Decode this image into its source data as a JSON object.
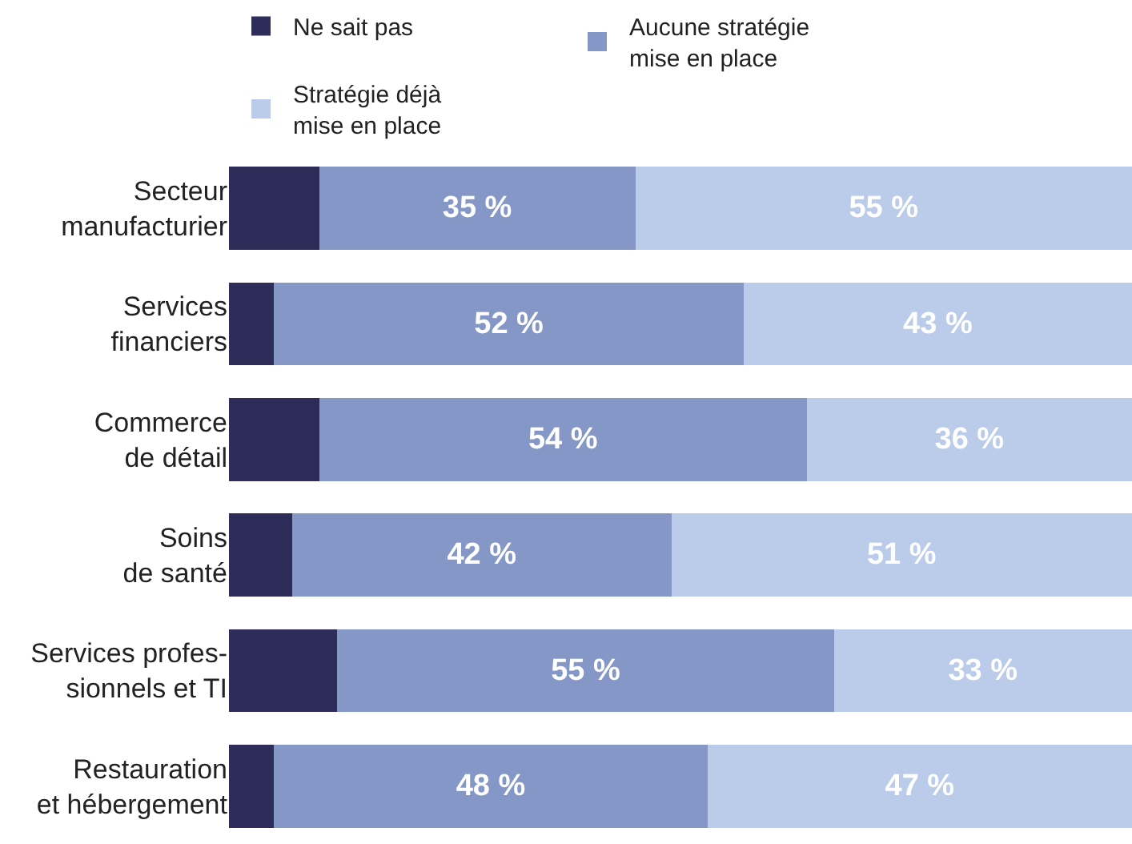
{
  "chart_data": {
    "type": "bar",
    "orientation": "horizontal",
    "stacked": true,
    "legend": "top",
    "xlim": [
      0,
      100
    ],
    "categories": [
      "Secteur\nmanufacturier",
      "Services\nfinanciers",
      "Commerce\nde détail",
      "Soins\nde santé",
      "Services profes-\nsionnels et TI",
      "Restauration\net hébergement"
    ],
    "series": [
      {
        "name": "Ne sait pas",
        "color": "#2e2d5a",
        "values": [
          10,
          5,
          10,
          7,
          12,
          5
        ],
        "value_labels": [
          null,
          null,
          null,
          null,
          null,
          null
        ]
      },
      {
        "name": "Aucune stratégie\nmise en place",
        "color": "#8497c6",
        "values": [
          35,
          52,
          54,
          42,
          55,
          48
        ],
        "value_labels": [
          "35 %",
          "52 %",
          "54 %",
          "42 %",
          "55 %",
          "48 %"
        ]
      },
      {
        "name": "Stratégie déjà\nmise en place",
        "color": "#bbcbea",
        "values": [
          55,
          43,
          36,
          51,
          33,
          47
        ],
        "value_labels": [
          "55 %",
          "43 %",
          "36 %",
          "51 %",
          "33 %",
          "47 %"
        ]
      }
    ]
  }
}
